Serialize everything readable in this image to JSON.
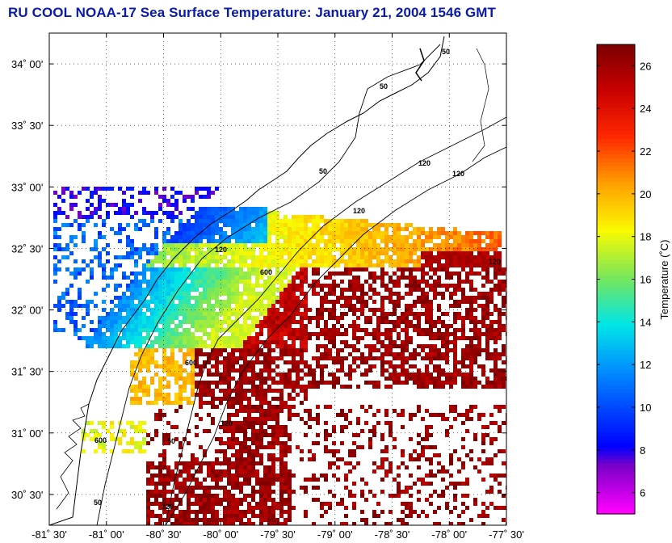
{
  "title": "RU COOL  NOAA-17  Sea Surface Temperature:  January 21, 2004 1546 GMT",
  "map": {
    "lon_range": [
      -81.5,
      -77.5
    ],
    "lat_range": [
      30.25,
      34.25
    ],
    "grid": "dotted",
    "lat_ticks": [
      {
        "value": 34.0,
        "label": "34˚ 00'"
      },
      {
        "value": 33.5,
        "label": "33˚ 30'"
      },
      {
        "value": 33.0,
        "label": "33˚ 00'"
      },
      {
        "value": 32.5,
        "label": "32˚ 30'"
      },
      {
        "value": 32.0,
        "label": "32˚ 00'"
      },
      {
        "value": 31.5,
        "label": "31˚ 30'"
      },
      {
        "value": 31.0,
        "label": "31˚ 00'"
      },
      {
        "value": 30.5,
        "label": "30˚ 30'"
      }
    ],
    "lon_ticks": [
      {
        "value": -81.5,
        "label": "-81˚ 30'"
      },
      {
        "value": -81.0,
        "label": "-81˚ 00'"
      },
      {
        "value": -80.5,
        "label": "-80˚ 30'"
      },
      {
        "value": -80.0,
        "label": "-80˚ 00'"
      },
      {
        "value": -79.5,
        "label": "-79˚ 30'"
      },
      {
        "value": -79.0,
        "label": "-79˚ 00'"
      },
      {
        "value": -78.5,
        "label": "-78˚ 30'"
      },
      {
        "value": -78.0,
        "label": "-78˚ 00'"
      },
      {
        "value": -77.5,
        "label": "-77˚ 30'"
      }
    ],
    "isobath_labels": [
      "50",
      "50",
      "50",
      "120",
      "120",
      "120",
      "120",
      "120",
      "600",
      "600",
      "600",
      "50",
      "120",
      "50",
      "120"
    ]
  },
  "colorbar": {
    "label": "Temperature (˚C)",
    "min": 5,
    "max": 27,
    "ticks": [
      "6",
      "8",
      "10",
      "12",
      "14",
      "16",
      "18",
      "20",
      "22",
      "24",
      "26"
    ]
  },
  "colors": {
    "title": "#0a1aa8",
    "land": "#ffffff",
    "coast": "#000000"
  }
}
